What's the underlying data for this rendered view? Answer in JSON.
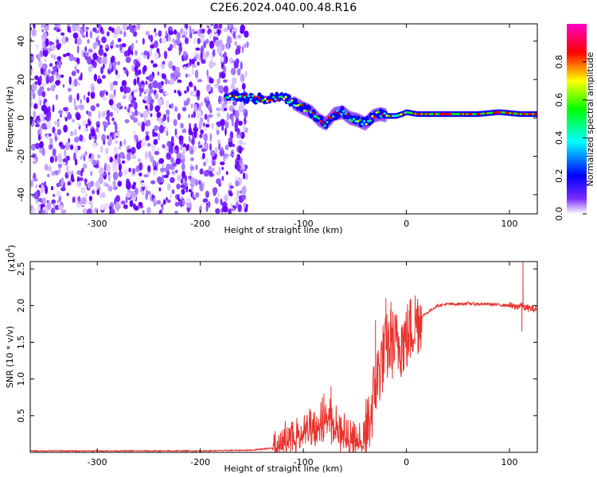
{
  "title": "C2E6.2024.040.00.48.R16",
  "chart_data": [
    {
      "type": "heatmap",
      "xlabel": "Height of straight line (km)",
      "ylabel": "Frequency (Hz)",
      "xlim": [
        -365,
        127
      ],
      "ylim": [
        -50,
        49
      ],
      "xticks": [
        -300,
        -200,
        -100,
        0,
        100
      ],
      "yticks": [
        -40,
        -20,
        0,
        20,
        40
      ],
      "colorbar": {
        "label": "Normalized spectral amplitude",
        "range": [
          0.0,
          1.0
        ],
        "ticks": [
          "0.0",
          "0.2",
          "0.4",
          "0.6",
          "0.8"
        ],
        "colors": [
          "#ffffff",
          "#6a00ff",
          "#0000ff",
          "#00ffff",
          "#00ff00",
          "#ffff00",
          "#ff0000",
          "#ff00c8"
        ]
      },
      "noise_region_km": [
        -365,
        -155
      ],
      "ridge": {
        "x": [
          -175,
          -165,
          -150,
          -135,
          -120,
          -110,
          -100,
          -92,
          -85,
          -78,
          -70,
          -62,
          -55,
          -48,
          -40,
          -32,
          -25,
          -18,
          -10,
          -4,
          0,
          10,
          30,
          50,
          70,
          90,
          110,
          127
        ],
        "y": [
          12,
          11,
          10,
          10,
          11,
          8,
          5,
          3,
          -1,
          -3,
          2,
          3,
          0,
          -1,
          -3,
          1,
          2,
          1,
          1,
          2,
          3,
          2,
          2,
          2,
          2,
          3,
          2,
          2
        ]
      }
    },
    {
      "type": "line",
      "xlabel": "Height of straight line (km)",
      "ylabel": "SNR (10 * v/v)",
      "yscale_note": "(x10^4)",
      "xlim": [
        -365,
        127
      ],
      "ylim": [
        0,
        2.6
      ],
      "xticks": [
        -300,
        -200,
        -100,
        0,
        100
      ],
      "yticks": [
        "0.5",
        "1.0",
        "1.5",
        "2.0",
        "2.5"
      ],
      "grid": false,
      "series": [
        {
          "color": "#e8332d",
          "x": [
            -365,
            -300,
            -200,
            -150,
            -130,
            -120,
            -110,
            -100,
            -90,
            -80,
            -75,
            -70,
            -65,
            -60,
            -55,
            -50,
            -45,
            -40,
            -35,
            -30,
            -25,
            -20,
            -15,
            -10,
            -5,
            0,
            5,
            10,
            15,
            20,
            25,
            30,
            40,
            50,
            60,
            70,
            80,
            90,
            100,
            105,
            110,
            113,
            115,
            120,
            127
          ],
          "y": [
            0.02,
            0.02,
            0.02,
            0.03,
            0.06,
            0.12,
            0.2,
            0.3,
            0.4,
            0.5,
            0.45,
            0.5,
            0.3,
            0.25,
            0.2,
            0.15,
            0.15,
            0.2,
            0.5,
            0.9,
            1.2,
            1.4,
            1.5,
            1.45,
            1.5,
            1.55,
            1.7,
            1.8,
            1.85,
            1.9,
            1.95,
            2.0,
            2.02,
            2.02,
            2.03,
            2.02,
            2.02,
            2.01,
            2.0,
            1.98,
            2.0,
            2.0,
            1.97,
            1.96,
            1.95
          ],
          "spikes": [
            {
              "x": -80,
              "y": 0.8
            },
            {
              "x": -73,
              "y": 0.9
            },
            {
              "x": -30,
              "y": 1.8
            },
            {
              "x": -20,
              "y": 2.1
            },
            {
              "x": -15,
              "y": 2.05
            },
            {
              "x": -5,
              "y": 1.7
            },
            {
              "x": 113,
              "y": 2.6
            },
            {
              "x": 112,
              "y": 1.65
            }
          ]
        }
      ]
    }
  ]
}
